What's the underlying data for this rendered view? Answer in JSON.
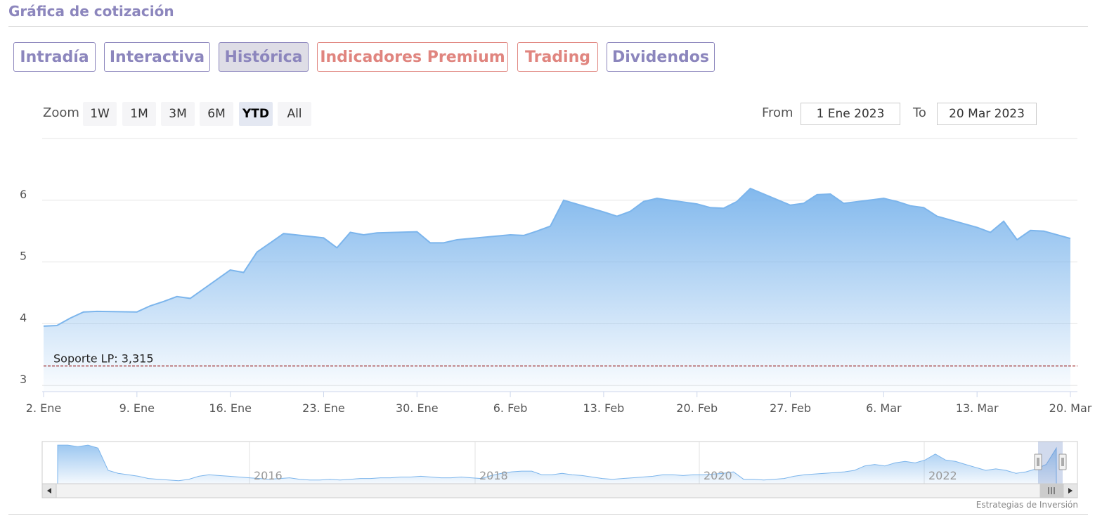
{
  "header": {
    "title": "Gráfica de cotización"
  },
  "tabs": [
    {
      "label": "Intradía",
      "style": "purple",
      "active": false
    },
    {
      "label": "Interactiva",
      "style": "purple",
      "active": false
    },
    {
      "label": "Histórica",
      "style": "purple",
      "active": true
    },
    {
      "label": "Indicadores Premium",
      "style": "red",
      "active": false
    },
    {
      "label": "Trading",
      "style": "red",
      "active": false
    },
    {
      "label": "Dividendos",
      "style": "purple",
      "active": false
    }
  ],
  "zoom": {
    "label": "Zoom",
    "buttons": [
      "1W",
      "1M",
      "3M",
      "6M",
      "YTD",
      "All"
    ],
    "selected": "YTD"
  },
  "range": {
    "from_label": "From",
    "from_value": "1 Ene 2023",
    "to_label": "To",
    "to_value": "20 Mar 2023"
  },
  "chart_data": {
    "type": "area",
    "title": "",
    "xlabel": "",
    "ylabel": "",
    "x_start": "2023-01-02",
    "x_end": "2023-03-20",
    "ylim": [
      2.9,
      7.0
    ],
    "yticks": [
      3,
      4,
      5,
      6
    ],
    "xticks": [
      {
        "date": "2023-01-02",
        "label": "2. Ene"
      },
      {
        "date": "2023-01-09",
        "label": "9. Ene"
      },
      {
        "date": "2023-01-16",
        "label": "16. Ene"
      },
      {
        "date": "2023-01-23",
        "label": "23. Ene"
      },
      {
        "date": "2023-01-30",
        "label": "30. Ene"
      },
      {
        "date": "2023-02-06",
        "label": "6. Feb"
      },
      {
        "date": "2023-02-13",
        "label": "13. Feb"
      },
      {
        "date": "2023-02-20",
        "label": "20. Feb"
      },
      {
        "date": "2023-02-27",
        "label": "27. Feb"
      },
      {
        "date": "2023-03-06",
        "label": "6. Mar"
      },
      {
        "date": "2023-03-13",
        "label": "13. Mar"
      },
      {
        "date": "2023-03-20",
        "label": "20. Mar"
      }
    ],
    "series": [
      {
        "color": "#7cb5ec",
        "points": [
          [
            "2023-01-02",
            3.96
          ],
          [
            "2023-01-03",
            3.97
          ],
          [
            "2023-01-04",
            4.09
          ],
          [
            "2023-01-05",
            4.19
          ],
          [
            "2023-01-06",
            4.2
          ],
          [
            "2023-01-09",
            4.19
          ],
          [
            "2023-01-10",
            4.29
          ],
          [
            "2023-01-11",
            4.36
          ],
          [
            "2023-01-12",
            4.44
          ],
          [
            "2023-01-13",
            4.41
          ],
          [
            "2023-01-16",
            4.87
          ],
          [
            "2023-01-17",
            4.83
          ],
          [
            "2023-01-18",
            5.16
          ],
          [
            "2023-01-19",
            5.31
          ],
          [
            "2023-01-20",
            5.46
          ],
          [
            "2023-01-23",
            5.39
          ],
          [
            "2023-01-24",
            5.23
          ],
          [
            "2023-01-25",
            5.48
          ],
          [
            "2023-01-26",
            5.44
          ],
          [
            "2023-01-27",
            5.47
          ],
          [
            "2023-01-30",
            5.49
          ],
          [
            "2023-01-31",
            5.31
          ],
          [
            "2023-02-01",
            5.31
          ],
          [
            "2023-02-02",
            5.36
          ],
          [
            "2023-02-03",
            5.38
          ],
          [
            "2023-02-06",
            5.44
          ],
          [
            "2023-02-07",
            5.43
          ],
          [
            "2023-02-08",
            5.5
          ],
          [
            "2023-02-09",
            5.58
          ],
          [
            "2023-02-10",
            6.0
          ],
          [
            "2023-02-13",
            5.81
          ],
          [
            "2023-02-14",
            5.74
          ],
          [
            "2023-02-15",
            5.82
          ],
          [
            "2023-02-16",
            5.98
          ],
          [
            "2023-02-17",
            6.03
          ],
          [
            "2023-02-20",
            5.94
          ],
          [
            "2023-02-21",
            5.88
          ],
          [
            "2023-02-22",
            5.87
          ],
          [
            "2023-02-23",
            5.98
          ],
          [
            "2023-02-24",
            6.19
          ],
          [
            "2023-02-27",
            5.92
          ],
          [
            "2023-02-28",
            5.95
          ],
          [
            "2023-03-01",
            6.09
          ],
          [
            "2023-03-02",
            6.1
          ],
          [
            "2023-03-03",
            5.95
          ],
          [
            "2023-03-06",
            6.03
          ],
          [
            "2023-03-07",
            5.98
          ],
          [
            "2023-03-08",
            5.91
          ],
          [
            "2023-03-09",
            5.88
          ],
          [
            "2023-03-10",
            5.74
          ],
          [
            "2023-03-13",
            5.56
          ],
          [
            "2023-03-14",
            5.48
          ],
          [
            "2023-03-15",
            5.66
          ],
          [
            "2023-03-16",
            5.36
          ],
          [
            "2023-03-17",
            5.51
          ],
          [
            "2023-03-18",
            5.5
          ],
          [
            "2023-03-20",
            5.38
          ]
        ]
      }
    ],
    "support_line": {
      "value": 3.315,
      "label": "Soporte LP: 3,315",
      "color": "#8b0000"
    },
    "navigator": {
      "year_labels": [
        "2016",
        "2018",
        "2020",
        "2022"
      ],
      "values": [
        5.6,
        5.6,
        5.5,
        5.6,
        5.4,
        3.9,
        3.7,
        3.6,
        3.5,
        3.35,
        3.3,
        3.25,
        3.2,
        3.3,
        3.5,
        3.6,
        3.55,
        3.5,
        3.45,
        3.4,
        3.35,
        3.3,
        3.35,
        3.4,
        3.3,
        3.25,
        3.25,
        3.3,
        3.25,
        3.3,
        3.35,
        3.35,
        3.4,
        3.4,
        3.45,
        3.45,
        3.5,
        3.45,
        3.4,
        3.4,
        3.45,
        3.4,
        3.35,
        3.55,
        3.7,
        3.8,
        3.85,
        3.85,
        3.6,
        3.6,
        3.7,
        3.6,
        3.55,
        3.45,
        3.35,
        3.3,
        3.35,
        3.4,
        3.45,
        3.5,
        3.6,
        3.6,
        3.55,
        3.6,
        3.6,
        3.65,
        3.7,
        3.8,
        3.3,
        3.3,
        3.25,
        3.3,
        3.35,
        3.5,
        3.6,
        3.65,
        3.7,
        3.75,
        3.8,
        3.9,
        4.2,
        4.3,
        4.2,
        4.4,
        4.5,
        4.4,
        4.6,
        5.0,
        4.6,
        4.5,
        4.3,
        4.1,
        3.9,
        4.0,
        3.9,
        3.7,
        3.8,
        4.0,
        4.3,
        5.4
      ]
    }
  }
}
